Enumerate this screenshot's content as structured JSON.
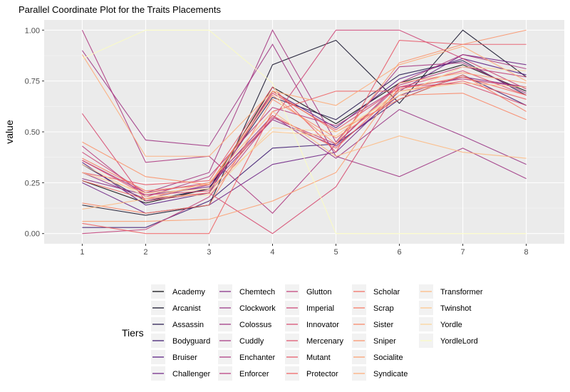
{
  "chart_data": {
    "type": "line",
    "title": "Parallel Coordinate Plot for the Traits Placements",
    "xlabel": "",
    "ylabel": "value",
    "x": [
      1,
      2,
      3,
      4,
      5,
      6,
      7,
      8
    ],
    "ylim": [
      -0.05,
      1.05
    ],
    "yticks": [
      "0.00",
      "0.25",
      "0.50",
      "0.75",
      "1.00"
    ],
    "grid": true,
    "legend": {
      "title": "Tiers",
      "position": "bottom"
    },
    "series": [
      {
        "name": "Academy",
        "color": "#000004",
        "values": [
          0.26,
          0.15,
          0.22,
          0.72,
          0.54,
          0.74,
          0.83,
          0.7
        ]
      },
      {
        "name": "Arcanist",
        "color": "#0a0822",
        "values": [
          0.14,
          0.09,
          0.14,
          0.83,
          0.95,
          0.64,
          1.0,
          0.77
        ]
      },
      {
        "name": "Assassin",
        "color": "#1d1147",
        "values": [
          0.34,
          0.16,
          0.22,
          0.67,
          0.56,
          0.78,
          0.85,
          0.68
        ]
      },
      {
        "name": "Bodyguard",
        "color": "#36106b",
        "values": [
          0.03,
          0.03,
          0.16,
          0.42,
          0.44,
          0.66,
          0.78,
          0.63
        ]
      },
      {
        "name": "Bruiser",
        "color": "#51127c",
        "values": [
          0.35,
          0.14,
          0.2,
          0.7,
          0.52,
          0.76,
          0.86,
          0.78
        ]
      },
      {
        "name": "Challenger",
        "color": "#6a1c81",
        "values": [
          0.25,
          0.1,
          0.14,
          0.34,
          0.4,
          0.7,
          0.88,
          0.83
        ]
      },
      {
        "name": "Chemtech",
        "color": "#822681",
        "values": [
          0.27,
          0.19,
          0.23,
          0.56,
          0.43,
          0.68,
          0.77,
          0.72
        ]
      },
      {
        "name": "Clockwork",
        "color": "#952d80",
        "values": [
          0.3,
          0.17,
          0.24,
          0.58,
          0.37,
          0.61,
          0.48,
          0.34
        ]
      },
      {
        "name": "Colossus",
        "color": "#9c2e7f",
        "values": [
          0.9,
          0.46,
          0.43,
          0.93,
          0.38,
          0.28,
          0.42,
          0.27
        ]
      },
      {
        "name": "Cuddly",
        "color": "#a3307e",
        "values": [
          0.36,
          0.2,
          0.3,
          1.0,
          0.45,
          0.82,
          0.84,
          0.69
        ]
      },
      {
        "name": "Enchanter",
        "color": "#ab337c",
        "values": [
          1.0,
          0.35,
          0.38,
          0.1,
          0.44,
          0.74,
          0.88,
          0.81
        ]
      },
      {
        "name": "Enforcer",
        "color": "#b5367a",
        "values": [
          0.43,
          0.18,
          0.28,
          0.62,
          0.53,
          0.72,
          0.76,
          0.72
        ]
      },
      {
        "name": "Glutton",
        "color": "#c03a76",
        "values": [
          0.0,
          0.02,
          0.18,
          0.57,
          0.44,
          0.73,
          0.82,
          0.77
        ]
      },
      {
        "name": "Imperial",
        "color": "#cb3e72",
        "values": [
          0.4,
          0.2,
          0.25,
          0.56,
          1.0,
          1.0,
          0.86,
          0.71
        ]
      },
      {
        "name": "Innovator",
        "color": "#d6456c",
        "values": [
          0.59,
          0.16,
          0.2,
          0.0,
          0.23,
          0.72,
          0.74,
          0.63
        ]
      },
      {
        "name": "Mercenary",
        "color": "#df4b68",
        "values": [
          0.36,
          0.19,
          0.21,
          0.69,
          0.51,
          0.72,
          0.8,
          0.68
        ]
      },
      {
        "name": "Mutant",
        "color": "#e75263",
        "values": [
          0.3,
          0.24,
          0.26,
          0.72,
          0.4,
          0.95,
          0.93,
          0.93
        ]
      },
      {
        "name": "Protector",
        "color": "#ee5c5e",
        "values": [
          0.05,
          0.0,
          0.0,
          0.6,
          0.7,
          0.7,
          0.75,
          0.66
        ]
      },
      {
        "name": "Scholar",
        "color": "#f3675c",
        "values": [
          0.26,
          0.17,
          0.2,
          0.58,
          0.42,
          0.71,
          0.77,
          0.68
        ]
      },
      {
        "name": "Scrap",
        "color": "#f7755c",
        "values": [
          0.37,
          0.21,
          0.24,
          0.7,
          0.5,
          0.66,
          0.78,
          0.6
        ]
      },
      {
        "name": "Sister",
        "color": "#fa8160",
        "values": [
          0.15,
          0.1,
          0.14,
          0.66,
          0.47,
          0.68,
          0.69,
          0.56
        ]
      },
      {
        "name": "Sniper",
        "color": "#fc8f65",
        "values": [
          0.45,
          0.28,
          0.24,
          0.68,
          0.44,
          0.84,
          0.93,
          1.0
        ]
      },
      {
        "name": "Socialite",
        "color": "#fd9b6b",
        "values": [
          0.06,
          0.06,
          0.07,
          0.16,
          0.3,
          0.74,
          0.79,
          0.74
        ]
      },
      {
        "name": "Syndicate",
        "color": "#fea973",
        "values": [
          0.88,
          0.38,
          0.38,
          0.7,
          0.63,
          0.83,
          0.92,
          0.75
        ]
      },
      {
        "name": "Transformer",
        "color": "#feb77c",
        "values": [
          0.12,
          0.17,
          0.25,
          0.6,
          0.38,
          0.48,
          0.4,
          0.37
        ]
      },
      {
        "name": "Twinshot",
        "color": "#fec488",
        "values": [
          0.3,
          0.2,
          0.22,
          0.5,
          0.48,
          0.7,
          0.74,
          0.72
        ]
      },
      {
        "name": "Yordle",
        "color": "#fcd395",
        "values": [
          0.34,
          0.18,
          0.19,
          0.52,
          0.5,
          0.68,
          0.82,
          0.8
        ]
      },
      {
        "name": "YordleLord",
        "color": "#fcfdbf",
        "values": [
          0.86,
          1.0,
          1.0,
          0.74,
          0.0,
          0.0,
          0.0,
          0.0
        ]
      }
    ]
  }
}
